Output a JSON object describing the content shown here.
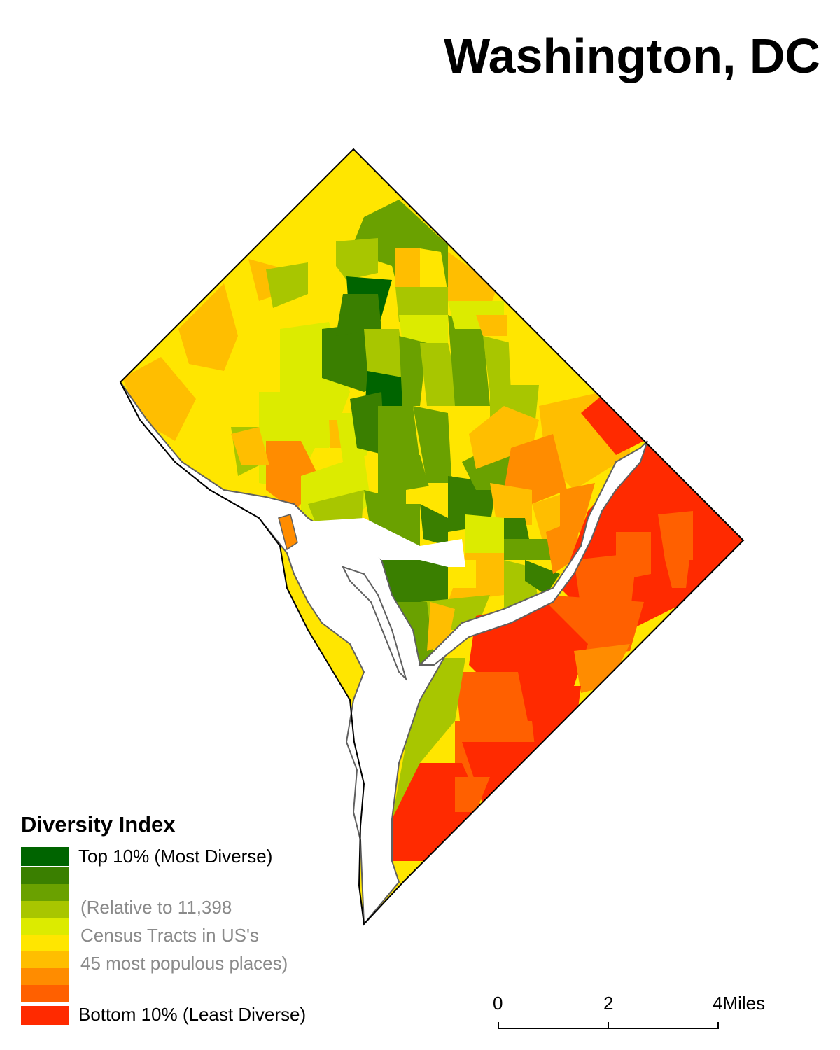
{
  "title": "Washington, DC",
  "map": {
    "name": "Washington DC census tract diversity index",
    "colors": {
      "water": "#ffffff",
      "boundary": "#000000",
      "shoreline": "#606060"
    }
  },
  "legend": {
    "title": "Diversity Index",
    "top_label": "Top 10% (Most Diverse)",
    "bottom_label": "Bottom 10% (Least Diverse)",
    "note_lines": [
      "(Relative to 11,398",
      "Census Tracts in US's",
      "45 most populous places)"
    ],
    "classes": [
      {
        "rank": 1,
        "color": "#006400"
      },
      {
        "rank": 2,
        "color": "#3a7f00"
      },
      {
        "rank": 3,
        "color": "#6aa100"
      },
      {
        "rank": 4,
        "color": "#a8c600"
      },
      {
        "rank": 5,
        "color": "#dceb00"
      },
      {
        "rank": 6,
        "color": "#ffe600"
      },
      {
        "rank": 7,
        "color": "#ffbe00"
      },
      {
        "rank": 8,
        "color": "#ff8c00"
      },
      {
        "rank": 9,
        "color": "#ff6000"
      },
      {
        "rank": 10,
        "color": "#ff2a00"
      }
    ]
  },
  "scale_bar": {
    "ticks": [
      "0",
      "2",
      "4"
    ],
    "unit": "Miles"
  }
}
